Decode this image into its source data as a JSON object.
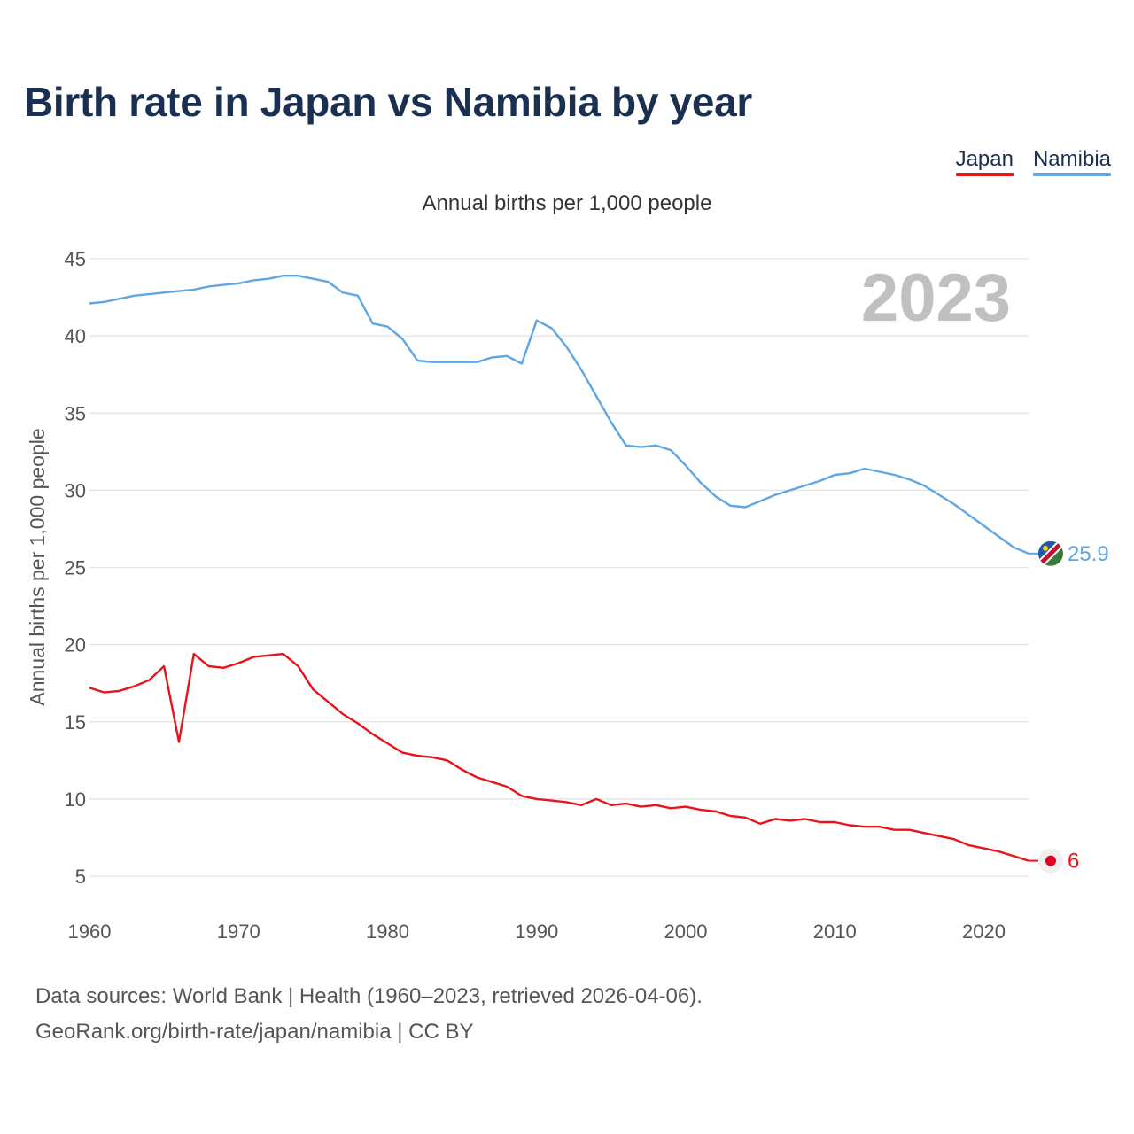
{
  "header": {
    "title": "Birth rate in Japan vs Namibia by year",
    "subtitle": "Annual births per 1,000 people"
  },
  "legend": [
    {
      "label": "Japan",
      "color": "#e8141c"
    },
    {
      "label": "Namibia",
      "color": "#5ea6e4"
    }
  ],
  "footer": {
    "line1": "Data sources: World Bank | Health (1960–2023, retrieved 2026-04-06).",
    "line2": "GeoRank.org/birth-rate/japan/namibia | CC BY"
  },
  "chart_data": {
    "type": "line",
    "title": "Birth rate in Japan vs Namibia by year",
    "subtitle": "Annual births per 1,000 people",
    "xlabel": "",
    "ylabel": "Annual births per 1,000 people",
    "xlim": [
      1960,
      2023
    ],
    "ylim": [
      3,
      46
    ],
    "yticks": [
      5,
      10,
      15,
      20,
      25,
      30,
      35,
      40,
      45
    ],
    "xticks": [
      1960,
      1970,
      1980,
      1990,
      2000,
      2010,
      2020
    ],
    "grid": true,
    "legend_position": "top-right",
    "year_label": "2023",
    "x": [
      1960,
      1961,
      1962,
      1963,
      1964,
      1965,
      1966,
      1967,
      1968,
      1969,
      1970,
      1971,
      1972,
      1973,
      1974,
      1975,
      1976,
      1977,
      1978,
      1979,
      1980,
      1981,
      1982,
      1983,
      1984,
      1985,
      1986,
      1987,
      1988,
      1989,
      1990,
      1991,
      1992,
      1993,
      1994,
      1995,
      1996,
      1997,
      1998,
      1999,
      2000,
      2001,
      2002,
      2003,
      2004,
      2005,
      2006,
      2007,
      2008,
      2009,
      2010,
      2011,
      2012,
      2013,
      2014,
      2015,
      2016,
      2017,
      2018,
      2019,
      2020,
      2021,
      2022,
      2023
    ],
    "series": [
      {
        "name": "Japan",
        "color": "#e8141c",
        "end_label": "6",
        "values": [
          17.2,
          16.9,
          17.0,
          17.3,
          17.7,
          18.6,
          13.7,
          19.4,
          18.6,
          18.5,
          18.8,
          19.2,
          19.3,
          19.4,
          18.6,
          17.1,
          16.3,
          15.5,
          14.9,
          14.2,
          13.6,
          13.0,
          12.8,
          12.7,
          12.5,
          11.9,
          11.4,
          11.1,
          10.8,
          10.2,
          10.0,
          9.9,
          9.8,
          9.6,
          10.0,
          9.6,
          9.7,
          9.5,
          9.6,
          9.4,
          9.5,
          9.3,
          9.2,
          8.9,
          8.8,
          8.4,
          8.7,
          8.6,
          8.7,
          8.5,
          8.5,
          8.3,
          8.2,
          8.2,
          8.0,
          8.0,
          7.8,
          7.6,
          7.4,
          7.0,
          6.8,
          6.6,
          6.3,
          6.0
        ]
      },
      {
        "name": "Namibia",
        "color": "#5ea6e4",
        "end_label": "25.9",
        "values": [
          42.1,
          42.2,
          42.4,
          42.6,
          42.7,
          42.8,
          42.9,
          43.0,
          43.2,
          43.3,
          43.4,
          43.6,
          43.7,
          43.9,
          43.9,
          43.7,
          43.5,
          42.8,
          42.6,
          40.8,
          40.6,
          39.8,
          38.4,
          38.3,
          38.3,
          38.3,
          38.3,
          38.6,
          38.7,
          38.2,
          41.0,
          40.5,
          39.3,
          37.8,
          36.1,
          34.4,
          32.9,
          32.8,
          32.9,
          32.6,
          31.6,
          30.5,
          29.6,
          29.0,
          28.9,
          29.3,
          29.7,
          30.0,
          30.3,
          30.6,
          31.0,
          31.1,
          31.4,
          31.2,
          31.0,
          30.7,
          30.3,
          29.7,
          29.1,
          28.4,
          27.7,
          27.0,
          26.3,
          25.9
        ]
      }
    ]
  }
}
